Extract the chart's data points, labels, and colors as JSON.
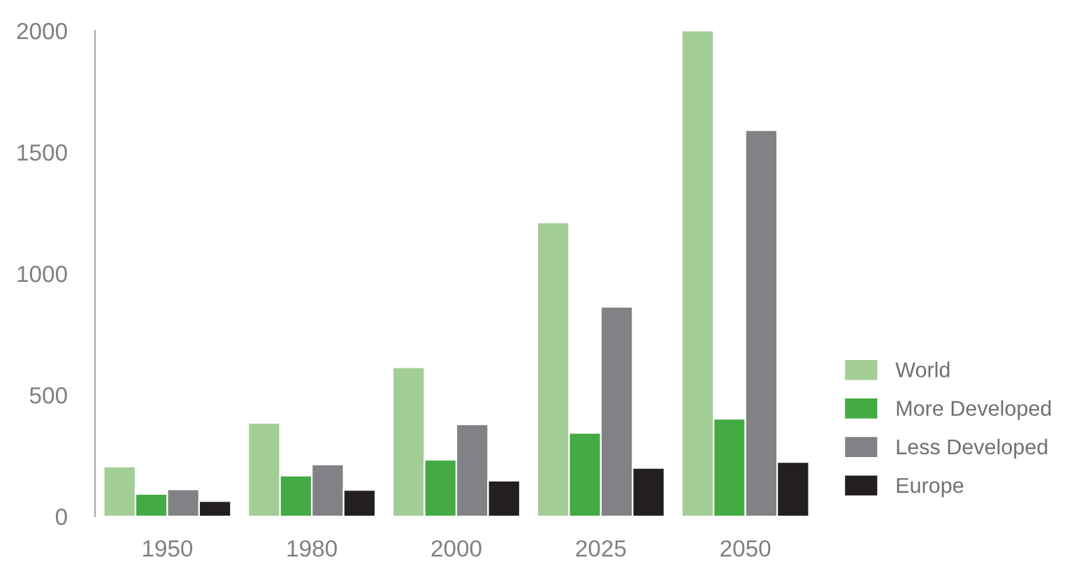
{
  "chart_data": {
    "type": "bar",
    "categories": [
      "1950",
      "1980",
      "2000",
      "2025",
      "2050"
    ],
    "series": [
      {
        "name": "World",
        "color": "#a2cd95",
        "values": [
          205,
          385,
          614,
          1210,
          2000
        ]
      },
      {
        "name": "More Developed",
        "color": "#44aa44",
        "values": [
          92,
          168,
          233,
          344,
          402
        ]
      },
      {
        "name": "Less Developed",
        "color": "#818285",
        "values": [
          111,
          214,
          379,
          863,
          1590
        ]
      },
      {
        "name": "Europe",
        "color": "#231f20",
        "values": [
          63,
          109,
          147,
          199,
          224
        ]
      }
    ],
    "ylim": [
      0,
      2000
    ],
    "yticks": [
      0,
      500,
      1000,
      1500,
      2000
    ],
    "grid": false,
    "legend": "right"
  }
}
